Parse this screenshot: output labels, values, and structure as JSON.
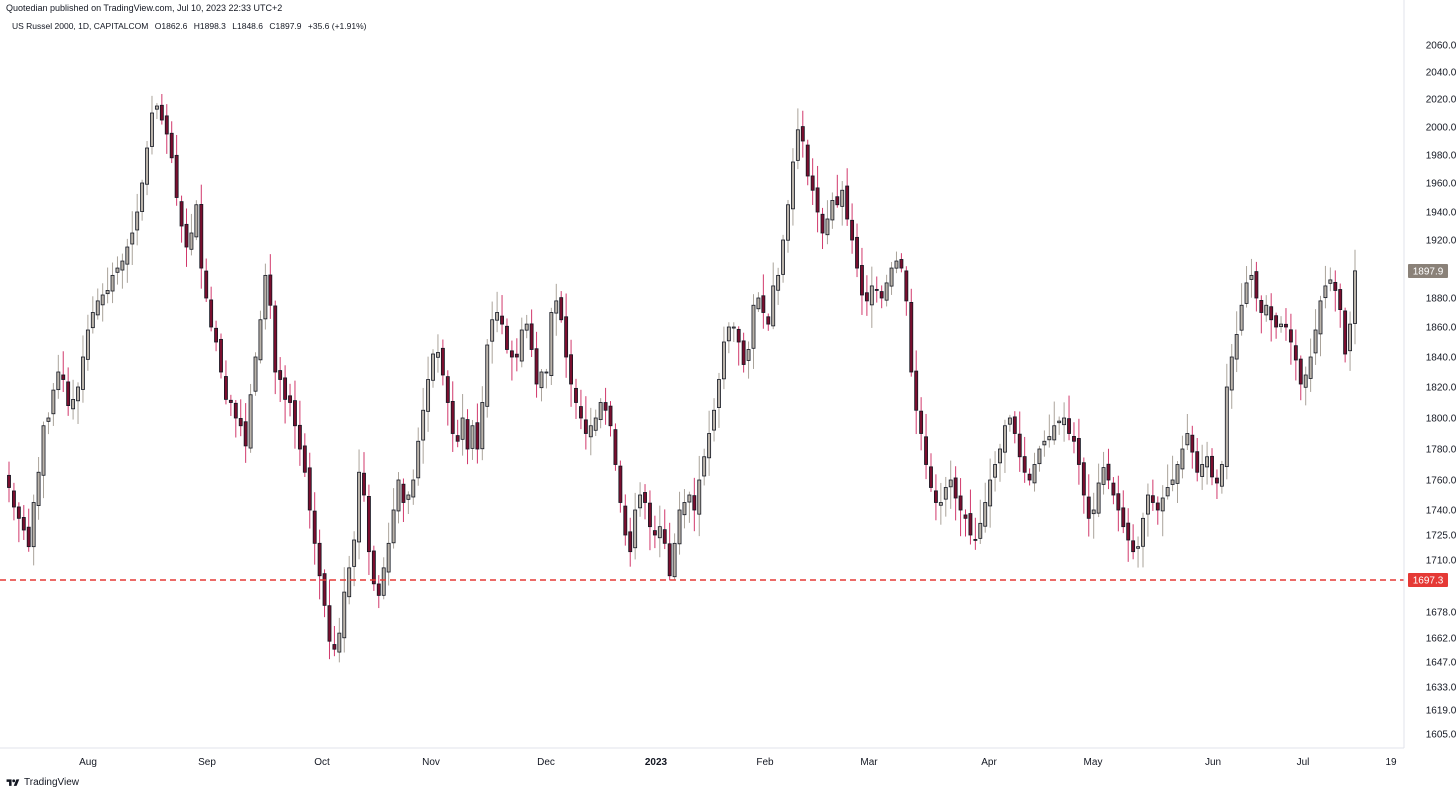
{
  "header": {
    "published": "Quotedian published on TradingView.com, Jul 10, 2023 22:33 UTC+2"
  },
  "symbol": {
    "name": "US Russel 2000, 1D, CAPITALCOM",
    "open": "O1862.6",
    "high": "H1898.3",
    "low": "L1848.6",
    "close": "C1897.9",
    "change": "+35.6 (+1.91%)"
  },
  "footer": {
    "brand": "TradingView"
  },
  "colors": {
    "up_fill": "#bab3aa",
    "down_fill": "#7a0e2e",
    "outline": "#131722",
    "wick_up": "#aaa39a",
    "wick_down": "#d1386b",
    "support": "#e53935",
    "last_price_bg": "#8a8178"
  },
  "chart_data": {
    "type": "candlestick",
    "title": "US Russel 2000, 1D, CAPITALCOM",
    "y_ticks": [
      2060.0,
      2040.0,
      2020.0,
      2000.0,
      1980.0,
      1960.0,
      1940.0,
      1920.0,
      1880.0,
      1860.0,
      1840.0,
      1820.0,
      1800.0,
      1780.0,
      1760.0,
      1740.0,
      1725.0,
      1710.0,
      1678.0,
      1662.0,
      1647.0,
      1633.0,
      1619.0,
      1605.0
    ],
    "y_tick_labels": [
      "2060.0",
      "2040.0",
      "2020.0",
      "2000.0",
      "1980.0",
      "1960.0",
      "1940.0",
      "1920.0",
      "1880.0",
      "1860.0",
      "1840.0",
      "1820.0",
      "1800.0",
      "1780.0",
      "1760.0",
      "1740.0",
      "1725.0",
      "1710.0",
      "1678.0",
      "1662.0",
      "1647.0",
      "1633.0",
      "1619.0",
      "1605.0"
    ],
    "x_tick_labels": [
      {
        "label": "Aug",
        "bold": false
      },
      {
        "label": "Sep",
        "bold": false
      },
      {
        "label": "Oct",
        "bold": false
      },
      {
        "label": "Nov",
        "bold": false
      },
      {
        "label": "Dec",
        "bold": false
      },
      {
        "label": "2023",
        "bold": true
      },
      {
        "label": "Feb",
        "bold": false
      },
      {
        "label": "Mar",
        "bold": false
      },
      {
        "label": "Apr",
        "bold": false
      },
      {
        "label": "May",
        "bold": false
      },
      {
        "label": "Jun",
        "bold": false
      },
      {
        "label": "Jul",
        "bold": false
      },
      {
        "label": "19",
        "bold": false
      }
    ],
    "last_price": {
      "value": 1897.9,
      "label": "1897.9"
    },
    "support_level": {
      "value": 1697.3,
      "label": "1697.3"
    },
    "close_path": [
      1755,
      1742,
      1735,
      1728,
      1718,
      1745,
      1765,
      1795,
      1800,
      1818,
      1830,
      1825,
      1808,
      1812,
      1820,
      1840,
      1858,
      1870,
      1878,
      1882,
      1885,
      1895,
      1900,
      1905,
      1915,
      1925,
      1940,
      1960,
      1985,
      2010,
      2015,
      2005,
      1995,
      1978,
      1950,
      1930,
      1915,
      1925,
      1945,
      1900,
      1880,
      1860,
      1850,
      1830,
      1812,
      1810,
      1800,
      1795,
      1782,
      1815,
      1840,
      1865,
      1895,
      1875,
      1830,
      1825,
      1812,
      1810,
      1795,
      1780,
      1765,
      1740,
      1720,
      1700,
      1682,
      1660,
      1655,
      1665,
      1690,
      1705,
      1722,
      1765,
      1750,
      1715,
      1695,
      1688,
      1705,
      1720,
      1740,
      1760,
      1745,
      1750,
      1760,
      1785,
      1805,
      1825,
      1842,
      1843,
      1828,
      1810,
      1790,
      1785,
      1800,
      1780,
      1795,
      1780,
      1810,
      1848,
      1865,
      1870,
      1862,
      1845,
      1840,
      1840,
      1858,
      1862,
      1845,
      1822,
      1830,
      1830,
      1870,
      1878,
      1865,
      1840,
      1822,
      1810,
      1800,
      1790,
      1795,
      1800,
      1810,
      1805,
      1795,
      1770,
      1745,
      1725,
      1715,
      1740,
      1750,
      1745,
      1730,
      1725,
      1730,
      1720,
      1700,
      1720,
      1740,
      1745,
      1750,
      1740,
      1760,
      1775,
      1790,
      1805,
      1825,
      1850,
      1860,
      1860,
      1850,
      1835,
      1845,
      1875,
      1880,
      1870,
      1862,
      1888,
      1895,
      1920,
      1945,
      1975,
      1998,
      1990,
      1965,
      1955,
      1940,
      1925,
      1935,
      1948,
      1945,
      1955,
      1935,
      1920,
      1900,
      1882,
      1878,
      1888,
      1885,
      1880,
      1890,
      1900,
      1905,
      1900,
      1878,
      1830,
      1805,
      1790,
      1770,
      1755,
      1745,
      1745,
      1755,
      1760,
      1748,
      1740,
      1735,
      1725,
      1722,
      1732,
      1745,
      1760,
      1770,
      1780,
      1795,
      1800,
      1790,
      1775,
      1765,
      1760,
      1770,
      1780,
      1785,
      1788,
      1795,
      1798,
      1800,
      1790,
      1785,
      1770,
      1750,
      1735,
      1740,
      1758,
      1768,
      1760,
      1750,
      1740,
      1730,
      1722,
      1715,
      1718,
      1735,
      1750,
      1745,
      1740,
      1748,
      1755,
      1760,
      1770,
      1780,
      1790,
      1778,
      1765,
      1770,
      1775,
      1762,
      1758,
      1770,
      1820,
      1840,
      1855,
      1875,
      1890,
      1895,
      1880,
      1870,
      1875,
      1865,
      1860,
      1862,
      1860,
      1850,
      1838,
      1822,
      1828,
      1840,
      1858,
      1878,
      1888,
      1892,
      1885,
      1872,
      1842,
      1862,
      1898
    ]
  }
}
